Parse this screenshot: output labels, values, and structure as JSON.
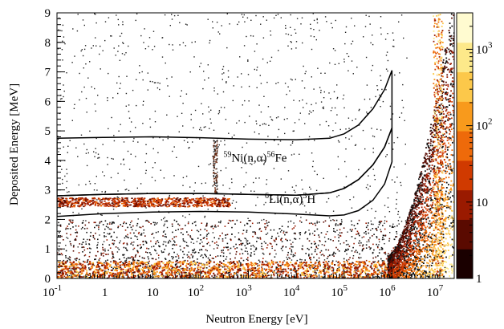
{
  "chart_data": {
    "type": "heatmap",
    "xlabel": "Neutron Energy [eV]",
    "ylabel": "Deposited Energy [MeV]",
    "x_scale": "log",
    "xlim": [
      0.1,
      20000000
    ],
    "ylim": [
      0,
      9
    ],
    "x_ticks": [
      {
        "value": 0.1,
        "base": "10",
        "exp": "-1"
      },
      {
        "value": 1,
        "base": "1",
        "exp": ""
      },
      {
        "value": 10,
        "base": "10",
        "exp": ""
      },
      {
        "value": 100,
        "base": "10",
        "exp": "2"
      },
      {
        "value": 1000,
        "base": "10",
        "exp": "3"
      },
      {
        "value": 10000,
        "base": "10",
        "exp": "4"
      },
      {
        "value": 100000,
        "base": "10",
        "exp": "5"
      },
      {
        "value": 1000000,
        "base": "10",
        "exp": "6"
      },
      {
        "value": 10000000,
        "base": "10",
        "exp": "7"
      }
    ],
    "y_ticks": [
      "0",
      "1",
      "2",
      "3",
      "4",
      "5",
      "6",
      "7",
      "8",
      "9"
    ],
    "colorbar": {
      "scale": "log",
      "range": [
        1,
        3000
      ],
      "ticks": [
        {
          "value": 1,
          "base": "1",
          "exp": ""
        },
        {
          "value": 10,
          "base": "10",
          "exp": ""
        },
        {
          "value": 100,
          "base": "10",
          "exp": "2"
        },
        {
          "value": 1000,
          "base": "10",
          "exp": "3"
        }
      ],
      "colors": [
        "#1a0000",
        "#5a0a00",
        "#9a1a00",
        "#d03a00",
        "#ee6a0a",
        "#f89a1c",
        "#fcc84a",
        "#fde98a",
        "#fffbd0"
      ]
    },
    "regions": [
      {
        "label_sup1": "59",
        "label_main1": "Ni(n,",
        "label_greek": "α",
        "label_main2": ")",
        "label_sup2": "56",
        "label_main3": "Fe",
        "upper": [
          [
            0.1,
            4.75
          ],
          [
            1,
            4.78
          ],
          [
            10,
            4.8
          ],
          [
            100,
            4.77
          ],
          [
            1000,
            4.72
          ],
          [
            10000,
            4.7
          ],
          [
            50000,
            4.75
          ],
          [
            100000,
            4.9
          ],
          [
            200000,
            5.2
          ],
          [
            400000,
            5.75
          ],
          [
            700000,
            6.4
          ],
          [
            1000000,
            7.05
          ]
        ],
        "lower": [
          [
            0.1,
            2.8
          ],
          [
            1,
            2.85
          ],
          [
            10,
            2.88
          ],
          [
            100,
            2.88
          ],
          [
            1000,
            2.85
          ],
          [
            10000,
            2.82
          ],
          [
            50000,
            2.9
          ],
          [
            100000,
            3.05
          ],
          [
            200000,
            3.35
          ],
          [
            400000,
            3.85
          ],
          [
            700000,
            4.45
          ],
          [
            1000000,
            5.1
          ]
        ]
      },
      {
        "label_sup1": "6",
        "label_main1": "Li(n,",
        "label_greek": "α",
        "label_main2": ")",
        "label_sup2": "3",
        "label_main3": "H",
        "upper": [
          [
            0.1,
            2.8
          ],
          [
            1,
            2.85
          ],
          [
            10,
            2.88
          ],
          [
            100,
            2.88
          ],
          [
            1000,
            2.85
          ],
          [
            10000,
            2.82
          ],
          [
            50000,
            2.9
          ],
          [
            100000,
            3.05
          ],
          [
            200000,
            3.35
          ],
          [
            400000,
            3.85
          ],
          [
            700000,
            4.45
          ],
          [
            1000000,
            5.1
          ]
        ],
        "lower": [
          [
            0.1,
            2.1
          ],
          [
            1,
            2.2
          ],
          [
            10,
            2.25
          ],
          [
            100,
            2.27
          ],
          [
            1000,
            2.25
          ],
          [
            10000,
            2.18
          ],
          [
            50000,
            2.12
          ],
          [
            100000,
            2.15
          ],
          [
            200000,
            2.3
          ],
          [
            400000,
            2.65
          ],
          [
            700000,
            3.2
          ],
          [
            1000000,
            3.95
          ]
        ]
      }
    ]
  }
}
